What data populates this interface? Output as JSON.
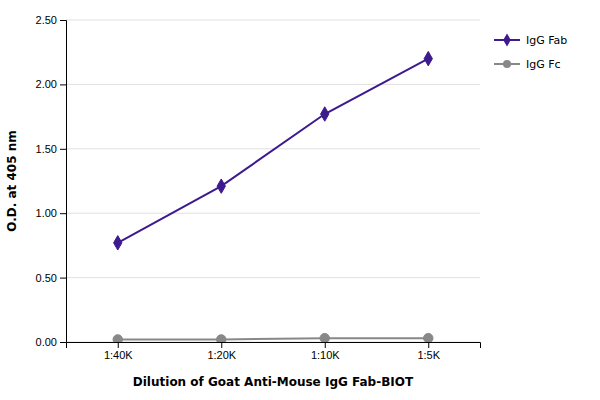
{
  "chart_data": {
    "type": "line",
    "xlabel": "Dilution of Goat Anti-Mouse IgG Fab-BIOT",
    "ylabel": "O.D. at 405 nm",
    "categories": [
      "1:40K",
      "1:20K",
      "1:10K",
      "1:5K"
    ],
    "series": [
      {
        "name": "IgG Fab",
        "color": "#3d1a8e",
        "marker": "diamond",
        "values": [
          0.77,
          1.21,
          1.77,
          2.2
        ]
      },
      {
        "name": "IgG Fc",
        "color": "#888888",
        "marker": "circle",
        "values": [
          0.02,
          0.02,
          0.03,
          0.03
        ]
      }
    ],
    "ylim": [
      0.0,
      2.5
    ],
    "yticks": [
      {
        "value": 0.0,
        "label": "0.00"
      },
      {
        "value": 0.5,
        "label": "0.50"
      },
      {
        "value": 1.0,
        "label": "1.00"
      },
      {
        "value": 1.5,
        "label": "1.50"
      },
      {
        "value": 2.0,
        "label": "2.00"
      },
      {
        "value": 2.5,
        "label": "2.50"
      }
    ],
    "grid": true,
    "legend": "right"
  }
}
